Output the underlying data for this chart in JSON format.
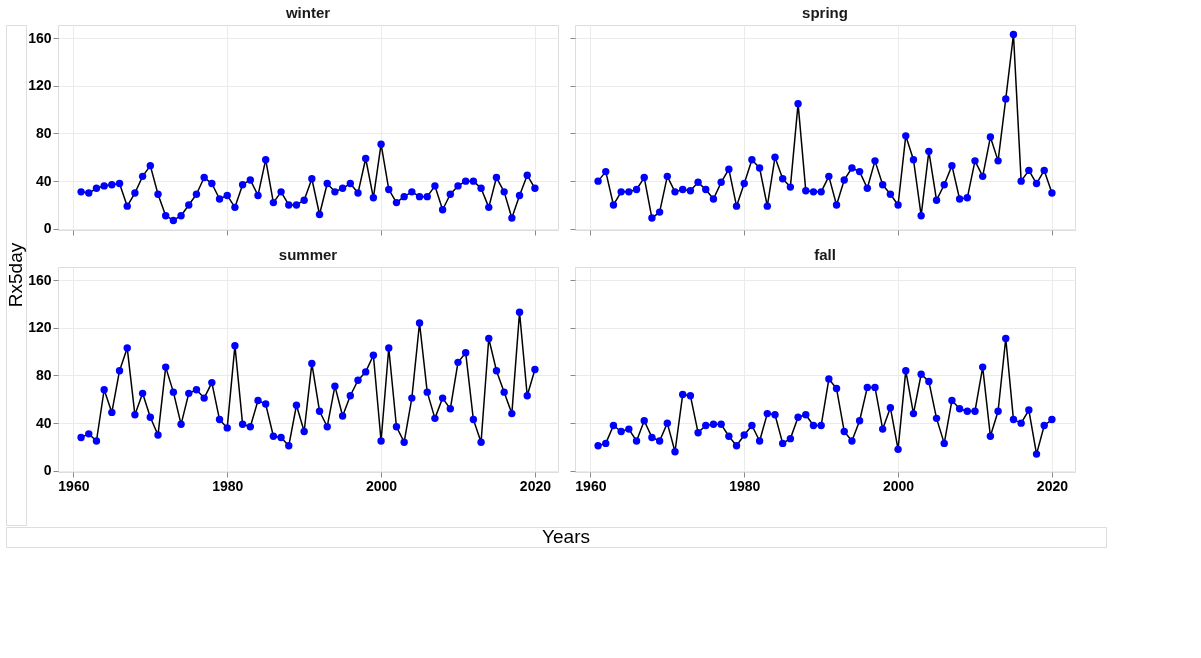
{
  "chart_data": [
    {
      "type": "line",
      "title": "winter",
      "ylabel": "Rx5day",
      "marker": "circle",
      "grid": true,
      "tick_labels": "y",
      "xlim": [
        1958,
        2023
      ],
      "ylim": [
        -1,
        171
      ],
      "xticks": [
        1960,
        1980,
        2000,
        2020
      ],
      "yticks": [
        0,
        40,
        80,
        120,
        160
      ],
      "x": [
        1961,
        1962,
        1963,
        1964,
        1965,
        1966,
        1967,
        1968,
        1969,
        1970,
        1971,
        1972,
        1973,
        1974,
        1975,
        1976,
        1977,
        1978,
        1979,
        1980,
        1981,
        1982,
        1983,
        1984,
        1985,
        1986,
        1987,
        1988,
        1989,
        1990,
        1991,
        1992,
        1993,
        1994,
        1995,
        1996,
        1997,
        1998,
        1999,
        2000,
        2001,
        2002,
        2003,
        2004,
        2005,
        2006,
        2007,
        2008,
        2009,
        2010,
        2011,
        2012,
        2013,
        2014,
        2015,
        2016,
        2017,
        2018,
        2019,
        2020
      ],
      "series": [
        {
          "color": "#0000ff",
          "values": [
            31,
            30,
            34,
            36,
            37,
            38,
            19,
            30,
            44,
            53,
            29,
            11,
            7,
            11,
            20,
            29,
            43,
            38,
            25,
            28,
            18,
            37,
            41,
            28,
            58,
            22,
            31,
            20,
            20,
            24,
            42,
            12,
            38,
            31,
            34,
            38,
            30,
            59,
            26,
            71,
            33,
            22,
            27,
            31,
            27,
            27,
            36,
            16,
            29,
            36,
            40,
            40,
            34,
            18,
            43,
            31,
            9,
            28,
            45,
            34
          ]
        }
      ]
    },
    {
      "type": "line",
      "title": "spring",
      "marker": "circle",
      "grid": true,
      "tick_labels": false,
      "xlim": [
        1958,
        2023
      ],
      "ylim": [
        -1,
        171
      ],
      "xticks": [
        1960,
        1980,
        2000,
        2020
      ],
      "yticks": [
        0,
        40,
        80,
        120,
        160
      ],
      "x": [
        1961,
        1962,
        1963,
        1964,
        1965,
        1966,
        1967,
        1968,
        1969,
        1970,
        1971,
        1972,
        1973,
        1974,
        1975,
        1976,
        1977,
        1978,
        1979,
        1980,
        1981,
        1982,
        1983,
        1984,
        1985,
        1986,
        1987,
        1988,
        1989,
        1990,
        1991,
        1992,
        1993,
        1994,
        1995,
        1996,
        1997,
        1998,
        1999,
        2000,
        2001,
        2002,
        2003,
        2004,
        2005,
        2006,
        2007,
        2008,
        2009,
        2010,
        2011,
        2012,
        2013,
        2014,
        2015,
        2016,
        2017,
        2018,
        2019,
        2020
      ],
      "series": [
        {
          "color": "#0000ff",
          "values": [
            40,
            48,
            20,
            31,
            31,
            33,
            43,
            9,
            14,
            44,
            31,
            33,
            32,
            39,
            33,
            25,
            39,
            50,
            19,
            38,
            58,
            51,
            19,
            60,
            42,
            35,
            105,
            32,
            31,
            31,
            44,
            20,
            41,
            51,
            48,
            34,
            57,
            37,
            29,
            20,
            78,
            58,
            11,
            65,
            24,
            37,
            53,
            25,
            26,
            57,
            44,
            77,
            57,
            109,
            163,
            40,
            49,
            38,
            49,
            30
          ]
        }
      ]
    },
    {
      "type": "line",
      "title": "summer",
      "xlabel": "Years",
      "marker": "circle",
      "grid": true,
      "xlim": [
        1958,
        2023
      ],
      "ylim": [
        -1,
        171
      ],
      "xticks": [
        1960,
        1980,
        2000,
        2020
      ],
      "yticks": [
        0,
        40,
        80,
        120,
        160
      ],
      "x": [
        1961,
        1962,
        1963,
        1964,
        1965,
        1966,
        1967,
        1968,
        1969,
        1970,
        1971,
        1972,
        1973,
        1974,
        1975,
        1976,
        1977,
        1978,
        1979,
        1980,
        1981,
        1982,
        1983,
        1984,
        1985,
        1986,
        1987,
        1988,
        1989,
        1990,
        1991,
        1992,
        1993,
        1994,
        1995,
        1996,
        1997,
        1998,
        1999,
        2000,
        2001,
        2002,
        2003,
        2004,
        2005,
        2006,
        2007,
        2008,
        2009,
        2010,
        2011,
        2012,
        2013,
        2014,
        2015,
        2016,
        2017,
        2018,
        2019,
        2020
      ],
      "series": [
        {
          "color": "#0000ff",
          "values": [
            28,
            31,
            25,
            68,
            49,
            84,
            103,
            47,
            65,
            45,
            30,
            87,
            66,
            39,
            65,
            68,
            61,
            74,
            43,
            36,
            105,
            39,
            37,
            59,
            56,
            29,
            28,
            21,
            55,
            33,
            90,
            50,
            37,
            71,
            46,
            63,
            76,
            83,
            97,
            25,
            103,
            37,
            24,
            61,
            124,
            66,
            44,
            61,
            52,
            91,
            99,
            43,
            24,
            111,
            84,
            66,
            48,
            133,
            63,
            85
          ]
        }
      ]
    },
    {
      "type": "line",
      "title": "fall",
      "marker": "circle",
      "grid": true,
      "tick_labels": "x",
      "xlim": [
        1958,
        2023
      ],
      "ylim": [
        -1,
        171
      ],
      "xticks": [
        1960,
        1980,
        2000,
        2020
      ],
      "yticks": [
        0,
        40,
        80,
        120,
        160
      ],
      "x": [
        1961,
        1962,
        1963,
        1964,
        1965,
        1966,
        1967,
        1968,
        1969,
        1970,
        1971,
        1972,
        1973,
        1974,
        1975,
        1976,
        1977,
        1978,
        1979,
        1980,
        1981,
        1982,
        1983,
        1984,
        1985,
        1986,
        1987,
        1988,
        1989,
        1990,
        1991,
        1992,
        1993,
        1994,
        1995,
        1996,
        1997,
        1998,
        1999,
        2000,
        2001,
        2002,
        2003,
        2004,
        2005,
        2006,
        2007,
        2008,
        2009,
        2010,
        2011,
        2012,
        2013,
        2014,
        2015,
        2016,
        2017,
        2018,
        2019,
        2020
      ],
      "series": [
        {
          "color": "#0000ff",
          "values": [
            21,
            23,
            38,
            33,
            35,
            25,
            42,
            28,
            25,
            40,
            16,
            64,
            63,
            32,
            38,
            39,
            39,
            29,
            21,
            30,
            38,
            25,
            48,
            47,
            23,
            27,
            45,
            47,
            38,
            38,
            77,
            69,
            33,
            25,
            42,
            70,
            70,
            35,
            53,
            18,
            84,
            48,
            81,
            75,
            44,
            23,
            59,
            52,
            50,
            50,
            87,
            29,
            50,
            111,
            43,
            40,
            51,
            14,
            38,
            43
          ]
        }
      ]
    }
  ]
}
